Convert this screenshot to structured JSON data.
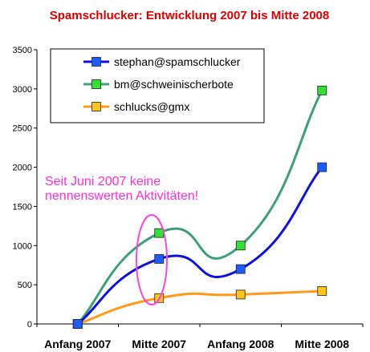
{
  "chart_data": {
    "type": "line",
    "title": "Spamschlucker: Entwicklung 2007 bis Mitte 2008",
    "categories": [
      "Anfang 2007",
      "Mitte 2007",
      "Anfang 2008",
      "Mitte 2008"
    ],
    "yticks": [
      "0",
      "500",
      "1000",
      "1500",
      "2000",
      "2500",
      "3000",
      "3500"
    ],
    "ylim": [
      0,
      3500
    ],
    "grid": false,
    "legend_position": "top-left",
    "series": [
      {
        "name": "stephan@spamschlucker",
        "values": [
          0,
          830,
          700,
          2000
        ],
        "color": "#1010e0",
        "marker": "#1a5cff"
      },
      {
        "name": "bm@schweinischerbote",
        "values": [
          0,
          1160,
          1000,
          2980
        ],
        "color": "#3f9f7a",
        "marker": "#33e033"
      },
      {
        "name": "schlucks@gmx",
        "values": [
          0,
          330,
          375,
          420
        ],
        "color": "#ff9a1a",
        "marker": "#ffc41a"
      }
    ],
    "annotation": {
      "lines": [
        "Seit Juni 2007 keine",
        "nennenswerten Aktivitäten!"
      ],
      "color": "#ff2bdc"
    },
    "title_color": "#e00000"
  }
}
